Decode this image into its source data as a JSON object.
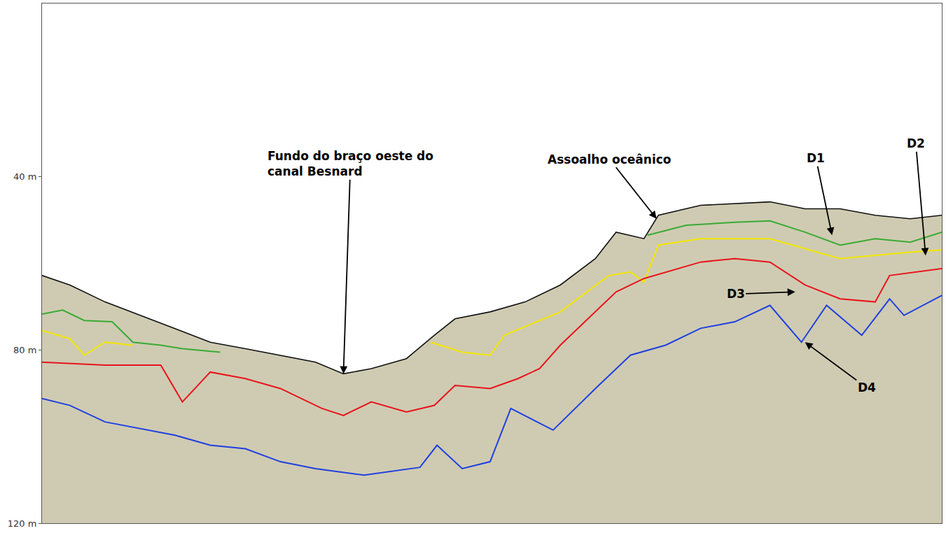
{
  "chart_data": {
    "type": "line",
    "tick_labels": "y",
    "grid": false,
    "xlim": [
      0,
      100
    ],
    "xticks": [],
    "ylim": [
      0,
      120
    ],
    "yticks": [
      {
        "value": 40,
        "label": "40 m"
      },
      {
        "value": 80,
        "label": "80 m"
      },
      {
        "value": 120,
        "label": "120 m"
      }
    ],
    "series": [
      {
        "name": "Assoalho oceânico",
        "color": "#111111",
        "x": [
          0,
          3.1,
          7,
          10.9,
          14.8,
          18.7,
          22.6,
          26.5,
          30.4,
          33.5,
          36.6,
          40.5,
          43.6,
          45.9,
          49.8,
          53.7,
          57.6,
          61.5,
          63.8,
          66.9,
          68.5,
          73.2,
          80.9,
          84.8,
          88.7,
          92.6,
          96.5,
          100
        ],
        "values": [
          62.8,
          65,
          68.9,
          72,
          75,
          78.2,
          79.7,
          81.2,
          82.8,
          85.5,
          84.3,
          82,
          76.6,
          72.8,
          71.2,
          68.9,
          65,
          58.9,
          52.8,
          54.3,
          48.9,
          46.6,
          45.8,
          47.4,
          47.4,
          48.9,
          49.7,
          48.9
        ]
      },
      {
        "name": "D1",
        "color": "#3aaa35",
        "x": [
          0,
          2.3,
          4.7,
          7.8,
          10.1,
          13.2,
          15.6,
          19.8,
          50,
          67.3,
          71.6,
          77,
          80.9,
          84.8,
          88.7,
          92.6,
          96.5,
          100
        ],
        "values": [
          71.7,
          70.8,
          73.2,
          73.5,
          78.2,
          78.9,
          79.7,
          80.5,
          null,
          53.5,
          51.2,
          50.5,
          50.2,
          52.8,
          55.8,
          54.3,
          55.1,
          52.8
        ]
      },
      {
        "name": "D2",
        "color": "#f2e600",
        "x": [
          0,
          3.1,
          4.7,
          7,
          10.1,
          30,
          43.2,
          46.7,
          49.8,
          51.4,
          57.6,
          63,
          65.4,
          66.9,
          68.5,
          73.2,
          80.9,
          88.7,
          96.5,
          100
        ],
        "values": [
          75.5,
          77.4,
          81.2,
          78.2,
          78.9,
          null,
          78.2,
          80.5,
          81.2,
          76.6,
          71.2,
          62.8,
          62,
          64.3,
          55.8,
          54.3,
          54.3,
          58.9,
          57.4,
          56.9
        ]
      },
      {
        "name": "D3",
        "color": "#e8141b",
        "x": [
          0,
          7,
          13.2,
          15.6,
          18.7,
          22.6,
          26.5,
          31.1,
          33.5,
          36.6,
          40.5,
          43.6,
          45.9,
          49.8,
          52.9,
          55.3,
          57.6,
          61.5,
          63.8,
          66.9,
          73.2,
          77,
          80.9,
          84.8,
          88.7,
          92.6,
          94.2,
          100
        ],
        "values": [
          82.8,
          83.5,
          83.5,
          92,
          85.1,
          86.6,
          88.9,
          93.5,
          95.1,
          92,
          94.3,
          92.8,
          88.2,
          88.9,
          86.6,
          84.3,
          78.9,
          71.2,
          66.6,
          63.5,
          59.7,
          58.9,
          59.7,
          65,
          68.2,
          68.9,
          62.8,
          61.2
        ]
      },
      {
        "name": "D4",
        "color": "#1f3fe0",
        "x": [
          0,
          3.1,
          7,
          10.9,
          14.8,
          18.7,
          22.6,
          26.5,
          30.4,
          35.8,
          42,
          43.9,
          46.7,
          49.8,
          52.1,
          56.8,
          61.5,
          65.4,
          69.3,
          73.2,
          77,
          80.9,
          84.4,
          87.2,
          91.1,
          94.2,
          95.8,
          100
        ],
        "values": [
          91.2,
          92.8,
          96.6,
          98.2,
          99.7,
          102,
          102.8,
          105.8,
          107.4,
          108.9,
          107.1,
          102,
          107.4,
          105.8,
          93.5,
          98.5,
          88.9,
          81.2,
          78.9,
          75,
          73.5,
          69.7,
          78.2,
          69.7,
          76.6,
          68.2,
          72,
          67.4
        ]
      }
    ],
    "annotations": [
      {
        "text": [
          "Fundo do braço oeste do",
          "canal Besnard"
        ],
        "x": 33.5,
        "y": 85.5
      },
      {
        "text": [
          "Assoalho oceânico"
        ],
        "x": 68.3,
        "y": 49.7
      },
      {
        "text": [
          "D1"
        ],
        "x": 87.8,
        "y": 53.5
      },
      {
        "text": [
          "D2"
        ],
        "x": 98.2,
        "y": 58.2
      },
      {
        "text": [
          "D3"
        ],
        "x": 83.7,
        "y": 66.6
      },
      {
        "text": [
          "D4"
        ],
        "x": 84.8,
        "y": 78.2
      }
    ]
  }
}
